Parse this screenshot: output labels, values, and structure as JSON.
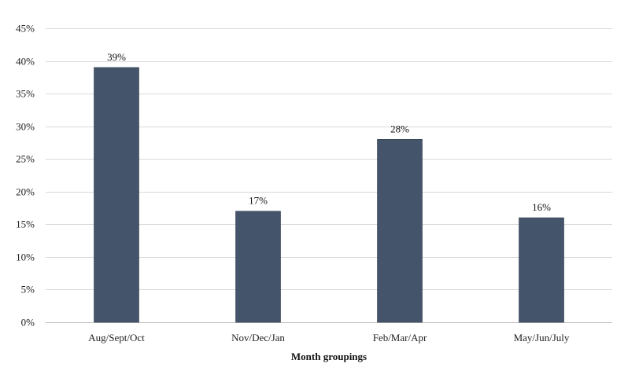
{
  "chart_data": {
    "type": "bar",
    "categories": [
      "Aug/Sept/Oct",
      "Nov/Dec/Jan",
      "Feb/Mar/Apr",
      "May/Jun/July"
    ],
    "values": [
      39,
      17,
      28,
      16
    ],
    "data_labels": [
      "39%",
      "17%",
      "28%",
      "16%"
    ],
    "title": "",
    "xlabel": "Month groupings",
    "ylabel": "",
    "ylim": [
      0,
      45
    ],
    "yticks": [
      0,
      5,
      10,
      15,
      20,
      25,
      30,
      35,
      40,
      45
    ],
    "ytick_labels": [
      "0%",
      "5%",
      "10%",
      "15%",
      "20%",
      "25%",
      "30%",
      "35%",
      "40%",
      "45%"
    ],
    "grid": true,
    "legend": "none",
    "bar_color": "#44546a"
  }
}
